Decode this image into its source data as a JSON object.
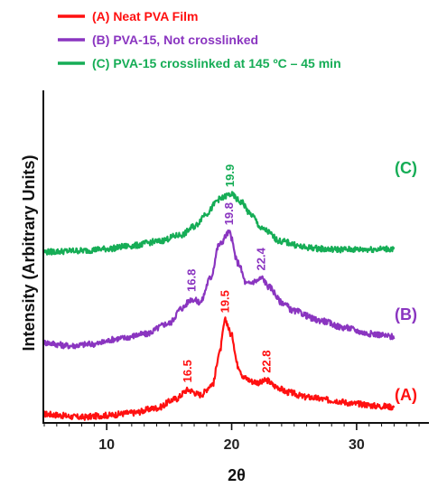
{
  "chart_data": {
    "type": "line",
    "xlabel": "2θ",
    "ylabel": "Intensity (Arbitrary Units)",
    "xlim": [
      5,
      35.5
    ],
    "x_ticks": [
      10,
      20,
      30
    ],
    "grid": false,
    "legend_position": "top-left",
    "series": [
      {
        "name": "(A) Neat PVA Film",
        "end_label": "(A)",
        "color": "#ff1010",
        "offset": 0,
        "x": [
          5,
          8,
          10,
          12,
          14,
          15.5,
          16.5,
          17.5,
          18.5,
          19.0,
          19.5,
          20.0,
          20.5,
          21.0,
          21.7,
          22.3,
          22.8,
          23.5,
          24.5,
          26,
          28,
          30,
          32,
          33
        ],
        "values": [
          1.0,
          0.5,
          0.8,
          1.2,
          2.0,
          3.5,
          5.0,
          4.2,
          6.0,
          11.0,
          16.5,
          14.0,
          9.0,
          7.0,
          6.4,
          6.2,
          6.6,
          5.6,
          4.6,
          3.8,
          3.3,
          2.7,
          2.3,
          2.2
        ],
        "peak_labels": [
          {
            "x": 16.5,
            "text": "16.5"
          },
          {
            "x": 19.5,
            "text": "19.5"
          },
          {
            "x": 22.8,
            "text": "22.8"
          }
        ]
      },
      {
        "name": "(B) PVA-15, Not crosslinked",
        "end_label": "(B)",
        "color": "#8a35c0",
        "offset": 12,
        "x": [
          5,
          7,
          9,
          11,
          13,
          15,
          16.0,
          16.8,
          17.5,
          18.3,
          19.0,
          19.8,
          20.5,
          21.2,
          22.0,
          22.4,
          23.0,
          24,
          25,
          27,
          29,
          31,
          33
        ],
        "values": [
          0.8,
          0.3,
          0.6,
          1.5,
          2.2,
          4.0,
          6.5,
          8.0,
          7.5,
          11.5,
          17.0,
          19.0,
          14.0,
          10.5,
          11.0,
          11.5,
          10.0,
          7.5,
          6.0,
          4.5,
          3.3,
          2.3,
          1.8
        ],
        "peak_labels": [
          {
            "x": 16.8,
            "text": "16.8"
          },
          {
            "x": 19.8,
            "text": "19.8"
          },
          {
            "x": 22.4,
            "text": "22.4"
          }
        ]
      },
      {
        "name": "(C) PVA-15 crosslinked at 145 ºC – 45 min",
        "end_label": "(C)",
        "color": "#16ad56",
        "offset": 27,
        "x": [
          5,
          8,
          10,
          12,
          14,
          16,
          17,
          18,
          19,
          19.9,
          20.8,
          21.5,
          22.5,
          24,
          26,
          28,
          30,
          33
        ],
        "values": [
          0.8,
          1.0,
          1.3,
          1.8,
          2.5,
          3.6,
          5.0,
          7.2,
          9.5,
          10.3,
          9.0,
          7.0,
          4.5,
          2.5,
          1.5,
          1.2,
          1.2,
          1.3
        ],
        "peak_labels": [
          {
            "x": 19.9,
            "text": "19.9"
          }
        ]
      }
    ]
  }
}
